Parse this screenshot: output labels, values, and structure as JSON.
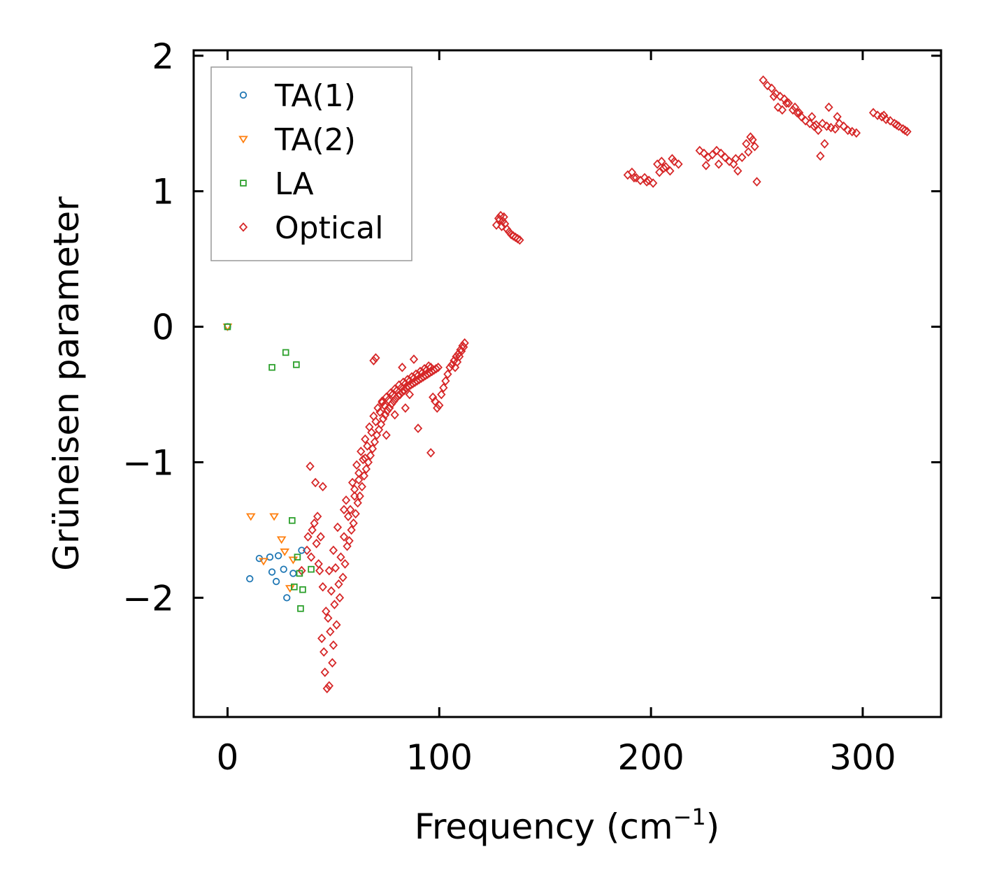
{
  "chart_data": {
    "type": "scatter",
    "title": "",
    "xlabel": "Frequency (cm",
    "xlabel_sup": "−1",
    "xlabel_end": ")",
    "ylabel": "Grüneisen parameter",
    "xlim": [
      -16,
      337
    ],
    "ylim": [
      -2.88,
      2.04
    ],
    "xticks": [
      0,
      100,
      200,
      300
    ],
    "yticks": [
      -2,
      -1,
      0,
      1,
      2
    ],
    "ytick_labels": [
      "−2",
      "−1",
      "0",
      "1",
      "2"
    ],
    "grid": false,
    "legend_position": "top-left",
    "series": [
      {
        "name": "TA(1)",
        "marker": "circle",
        "color": "#1f77b4",
        "x": [
          0,
          10.5,
          15,
          20,
          21,
          23,
          24,
          26.5,
          28,
          31,
          35
        ],
        "y": [
          0,
          -1.86,
          -1.71,
          -1.7,
          -1.81,
          -1.88,
          -1.69,
          -1.79,
          -2.0,
          -1.82,
          -1.65
        ]
      },
      {
        "name": "TA(2)",
        "marker": "triangle-down",
        "color": "#ff7f0e",
        "x": [
          0,
          11,
          17,
          22,
          25.5,
          27,
          29.5,
          31
        ],
        "y": [
          0,
          -1.4,
          -1.73,
          -1.4,
          -1.57,
          -1.66,
          -1.93,
          -1.72
        ]
      },
      {
        "name": "LA",
        "marker": "square",
        "color": "#2ca02c",
        "x": [
          0,
          21,
          27.5,
          32.5,
          30.5,
          33,
          31.5,
          34,
          35.5,
          39.5,
          34.5
        ],
        "y": [
          0,
          -0.3,
          -0.19,
          -0.28,
          -1.43,
          -1.7,
          -1.92,
          -1.82,
          -1.94,
          -1.79,
          -2.08
        ]
      },
      {
        "name": "Optical",
        "marker": "diamond",
        "color": "#d62728",
        "x": [
          47.0,
          48.0,
          46.0,
          49.5,
          45.5,
          50.0,
          44.5,
          48.5,
          51.5,
          47.5,
          46.5,
          50.5,
          53.0,
          49.0,
          45.0,
          52.5,
          54.5,
          48.0,
          51.0,
          55.5,
          53.5,
          50.0,
          56.5,
          57.5,
          55.0,
          58.5,
          52.0,
          59.5,
          57.0,
          60.5,
          58.0,
          61.5,
          56.0,
          62.5,
          60.0,
          63.5,
          59.0,
          64.5,
          62.0,
          65.5,
          61.0,
          66.5,
          64.0,
          67.5,
          63.0,
          68.5,
          66.0,
          69.5,
          65.0,
          70.5,
          68.0,
          71.5,
          67.0,
          72.5,
          70.0,
          73.5,
          69.0,
          74.5,
          72.0,
          75.5,
          71.0,
          76.5,
          74.0,
          77.5,
          73.0,
          78.5,
          76.0,
          79.5,
          75.0,
          80.5,
          78.0,
          81.5,
          77.0,
          82.5,
          80.0,
          83.5,
          79.0,
          84.5,
          82.0,
          85.5,
          81.0,
          86.5,
          84.0,
          87.5,
          83.0,
          88.5,
          86.0,
          89.5,
          85.0,
          90.5,
          88.0,
          91.5,
          87.0,
          92.5,
          90.0,
          93.5,
          89.0,
          94.5,
          92.0,
          95.5,
          91.0,
          96.5,
          94.0,
          97.5,
          93.0,
          98.5,
          96.0,
          99.5,
          95.0,
          97.0,
          98.0,
          99.0,
          100.0,
          101.0,
          102.0,
          103.0,
          104.0,
          105.0,
          106.0,
          107.0,
          108.0,
          109.0,
          110.0,
          111.0,
          112.0,
          111.5,
          110.5,
          109.5,
          108.5,
          107.5,
          38.0,
          40.0,
          41.0,
          42.0,
          39.5,
          43.0,
          35.0,
          37.5,
          44.0,
          42.5,
          41.5,
          45.0,
          43.5,
          39.0,
          96.0,
          90.0,
          84.0,
          70.0,
          75.0,
          79.0,
          65.0,
          62.0,
          55.0,
          60.0,
          69.0,
          73.0,
          86.0,
          82.5,
          88.0,
          127.0,
          128.0,
          129.0,
          130.0,
          131.0,
          132.0,
          133.0,
          134.0,
          135.0,
          136.0,
          137.0,
          138.0,
          129.5,
          128.5,
          130.5,
          189.0,
          191.0,
          193.0,
          195.0,
          197.0,
          199.0,
          201.0,
          203.0,
          205.0,
          207.0,
          209.0,
          211.0,
          213.0,
          192.0,
          198.0,
          206.0,
          210.0,
          204.0,
          223.0,
          225.0,
          227.0,
          229.0,
          231.0,
          233.0,
          235.0,
          237.0,
          239.0,
          241.0,
          243.0,
          245.0,
          247.0,
          249.0,
          226.0,
          232.0,
          240.0,
          246.0,
          250.0,
          248.0,
          253.0,
          255.0,
          257.0,
          259.0,
          261.0,
          263.0,
          265.0,
          267.0,
          269.0,
          271.0,
          273.0,
          275.0,
          277.0,
          279.0,
          281.0,
          283.0,
          285.0,
          287.0,
          289.0,
          291.0,
          293.0,
          295.0,
          297.0,
          260.0,
          268.0,
          276.0,
          280.0,
          284.0,
          288.0,
          258.0,
          262.0,
          270.0,
          278.0,
          282.0,
          264.0,
          305.0,
          307.0,
          309.0,
          311.0,
          313.0,
          315.0,
          317.0,
          319.0,
          321.0,
          310.0,
          316.0,
          320.0
        ],
        "y": [
          -2.67,
          -2.65,
          -2.55,
          -2.48,
          -2.4,
          -2.35,
          -2.3,
          -2.25,
          -2.2,
          -2.15,
          -2.1,
          -2.05,
          -2.0,
          -1.95,
          -1.92,
          -1.9,
          -1.85,
          -1.8,
          -1.78,
          -1.75,
          -1.7,
          -1.65,
          -1.62,
          -1.58,
          -1.55,
          -1.5,
          -1.48,
          -1.45,
          -1.4,
          -1.38,
          -1.35,
          -1.3,
          -1.28,
          -1.25,
          -1.2,
          -1.18,
          -1.15,
          -1.1,
          -1.08,
          -1.05,
          -1.02,
          -1.0,
          -0.98,
          -0.95,
          -0.92,
          -0.9,
          -0.88,
          -0.85,
          -0.83,
          -0.8,
          -0.78,
          -0.76,
          -0.74,
          -0.72,
          -0.7,
          -0.68,
          -0.66,
          -0.65,
          -0.63,
          -0.62,
          -0.6,
          -0.6,
          -0.58,
          -0.57,
          -0.56,
          -0.55,
          -0.54,
          -0.53,
          -0.52,
          -0.51,
          -0.5,
          -0.5,
          -0.49,
          -0.48,
          -0.47,
          -0.47,
          -0.46,
          -0.45,
          -0.45,
          -0.44,
          -0.43,
          -0.43,
          -0.42,
          -0.42,
          -0.41,
          -0.41,
          -0.4,
          -0.4,
          -0.39,
          -0.39,
          -0.38,
          -0.38,
          -0.37,
          -0.37,
          -0.36,
          -0.36,
          -0.35,
          -0.35,
          -0.34,
          -0.34,
          -0.33,
          -0.33,
          -0.32,
          -0.32,
          -0.31,
          -0.31,
          -0.3,
          -0.3,
          -0.29,
          -0.52,
          -0.55,
          -0.6,
          -0.58,
          -0.5,
          -0.45,
          -0.4,
          -0.35,
          -0.3,
          -0.28,
          -0.25,
          -0.22,
          -0.2,
          -0.17,
          -0.14,
          -0.12,
          -0.15,
          -0.18,
          -0.22,
          -0.26,
          -0.3,
          -1.55,
          -1.5,
          -1.45,
          -1.6,
          -1.7,
          -1.75,
          -1.8,
          -1.65,
          -1.55,
          -1.4,
          -1.15,
          -1.18,
          -1.8,
          -1.03,
          -0.93,
          -0.75,
          -0.6,
          -0.23,
          -0.8,
          -0.65,
          -0.97,
          -1.13,
          -1.35,
          -1.25,
          -0.25,
          -0.55,
          -0.5,
          -0.3,
          -0.24,
          0.75,
          0.8,
          0.82,
          0.78,
          0.76,
          0.72,
          0.7,
          0.68,
          0.67,
          0.66,
          0.65,
          0.64,
          0.74,
          0.79,
          0.81,
          1.12,
          1.14,
          1.1,
          1.08,
          1.1,
          1.08,
          1.06,
          1.2,
          1.22,
          1.18,
          1.15,
          1.22,
          1.2,
          1.1,
          1.07,
          1.17,
          1.24,
          1.14,
          1.3,
          1.28,
          1.25,
          1.27,
          1.3,
          1.28,
          1.25,
          1.22,
          1.2,
          1.15,
          1.25,
          1.35,
          1.4,
          1.33,
          1.19,
          1.2,
          1.24,
          1.29,
          1.07,
          1.38,
          1.82,
          1.78,
          1.76,
          1.72,
          1.7,
          1.68,
          1.65,
          1.6,
          1.58,
          1.55,
          1.52,
          1.5,
          1.48,
          1.45,
          1.5,
          1.48,
          1.47,
          1.46,
          1.5,
          1.48,
          1.45,
          1.44,
          1.43,
          1.62,
          1.62,
          1.55,
          1.26,
          1.62,
          1.55,
          1.7,
          1.6,
          1.58,
          1.49,
          1.35,
          1.65,
          1.58,
          1.56,
          1.55,
          1.53,
          1.52,
          1.5,
          1.48,
          1.46,
          1.44,
          1.56,
          1.49,
          1.45
        ]
      }
    ]
  }
}
